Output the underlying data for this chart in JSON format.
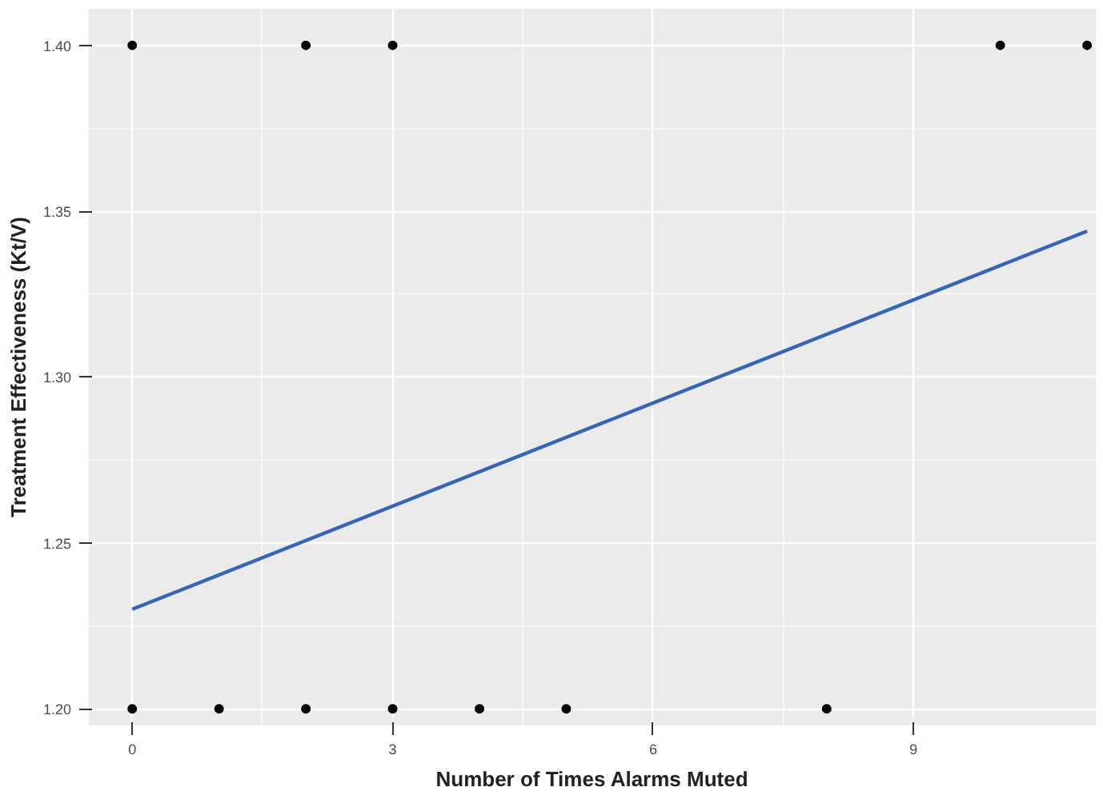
{
  "chart_data": {
    "type": "scatter",
    "xlabel": "Number of Times Alarms Muted",
    "ylabel": "Treatment Effectiveness (Kt/V)",
    "xlim": [
      -0.5,
      11.1
    ],
    "ylim": [
      1.195,
      1.411
    ],
    "xticks": [
      0,
      3,
      6,
      9
    ],
    "yticks": [
      {
        "value": 1.2,
        "label": "1.20"
      },
      {
        "value": 1.25,
        "label": "1.25"
      },
      {
        "value": 1.3,
        "label": "1.30"
      },
      {
        "value": 1.35,
        "label": "1.35"
      },
      {
        "value": 1.4,
        "label": "1.40"
      }
    ],
    "grid": true,
    "series": [
      {
        "marker": "circle",
        "color": "#000000",
        "x": [
          0,
          2,
          3,
          10,
          11,
          0,
          1,
          2,
          3,
          4,
          5,
          8
        ],
        "values": [
          1.4,
          1.4,
          1.4,
          1.4,
          1.4,
          1.2,
          1.2,
          1.2,
          1.2,
          1.2,
          1.2,
          1.2
        ]
      },
      {
        "type": "line",
        "color": "#3366bb",
        "x": [
          0,
          11
        ],
        "values": [
          1.23,
          1.344
        ]
      }
    ]
  }
}
